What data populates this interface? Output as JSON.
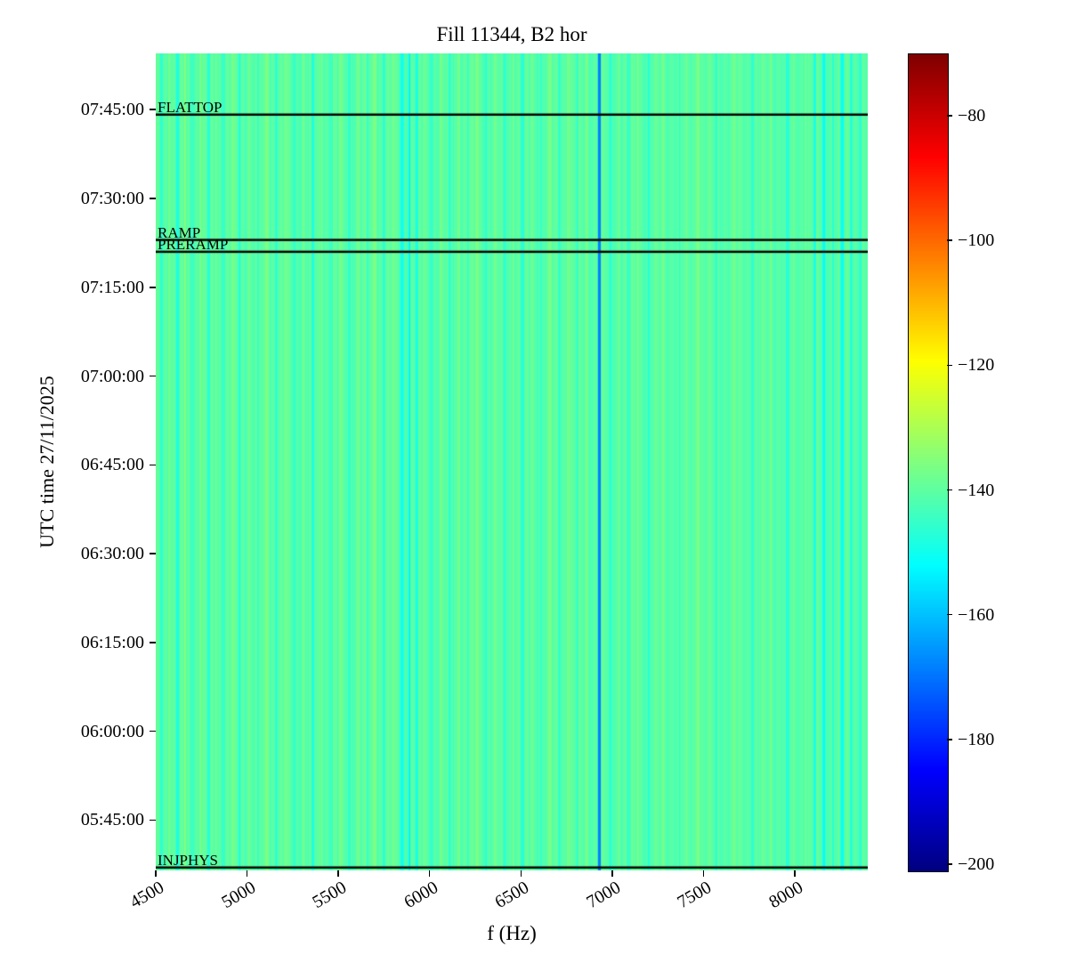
{
  "chart_data": {
    "type": "heatmap",
    "title": "Fill 11344, B2 hor",
    "xlabel": "f (Hz)",
    "ylabel": "UTC time 27/11/2025",
    "x_range": [
      4500,
      8400
    ],
    "x_ticks": [
      4500,
      5000,
      5500,
      6000,
      6500,
      7000,
      7500,
      8000
    ],
    "y_top": "07:54:30",
    "y_bottom": "05:36:30",
    "y_ticks": [
      "07:45:00",
      "07:30:00",
      "07:15:00",
      "07:00:00",
      "06:45:00",
      "06:30:00",
      "06:15:00",
      "06:00:00",
      "05:45:00"
    ],
    "grid": false,
    "colorbar": {
      "colormap": "jet",
      "vmin": -201,
      "vmax": -70,
      "tick_values": [
        -80,
        -100,
        -120,
        -140,
        -160,
        -180,
        -200
      ],
      "tick_labels": [
        "−80",
        "−100",
        "−120",
        "−140",
        "−160",
        "−180",
        "−200"
      ]
    },
    "base_db": -140.5,
    "events": [
      {
        "label": "FLATTOP",
        "time": "07:44:10"
      },
      {
        "label": "RAMP",
        "time": "07:23:00"
      },
      {
        "label": "PRERAMP",
        "time": "07:21:00"
      },
      {
        "label": "INJPHYS",
        "time": "05:37:00"
      }
    ],
    "vertical_lines": [
      {
        "f": 6930,
        "width_hz": 16,
        "db": -168
      }
    ],
    "stripes": [
      [
        4530,
        15,
        -146
      ],
      [
        4575,
        10,
        -136
      ],
      [
        4620,
        18,
        -148
      ],
      [
        4660,
        8,
        -134
      ],
      [
        4700,
        25,
        -144
      ],
      [
        4745,
        10,
        -135
      ],
      [
        4790,
        15,
        -147
      ],
      [
        4830,
        8,
        -137
      ],
      [
        4870,
        20,
        -145
      ],
      [
        4920,
        12,
        -136
      ],
      [
        4960,
        10,
        -148
      ],
      [
        5010,
        15,
        -138
      ],
      [
        5060,
        8,
        -146
      ],
      [
        5110,
        20,
        -136
      ],
      [
        5160,
        10,
        -147
      ],
      [
        5210,
        12,
        -137
      ],
      [
        5260,
        18,
        -145
      ],
      [
        5310,
        8,
        -136
      ],
      [
        5360,
        15,
        -148
      ],
      [
        5410,
        10,
        -137
      ],
      [
        5460,
        20,
        -144
      ],
      [
        5510,
        10,
        -136
      ],
      [
        5560,
        12,
        -147
      ],
      [
        5610,
        15,
        -137
      ],
      [
        5660,
        8,
        -146
      ],
      [
        5700,
        20,
        -136
      ],
      [
        5750,
        10,
        -148
      ],
      [
        5800,
        12,
        -137
      ],
      [
        5850,
        18,
        -150
      ],
      [
        5890,
        10,
        -153
      ],
      [
        5930,
        15,
        -149
      ],
      [
        5970,
        8,
        -137
      ],
      [
        6010,
        20,
        -145
      ],
      [
        6060,
        10,
        -136
      ],
      [
        6110,
        12,
        -147
      ],
      [
        6160,
        15,
        -137
      ],
      [
        6210,
        8,
        -145
      ],
      [
        6260,
        18,
        -136
      ],
      [
        6310,
        10,
        -147
      ],
      [
        6360,
        12,
        -137
      ],
      [
        6410,
        15,
        -146
      ],
      [
        6460,
        8,
        -136
      ],
      [
        6510,
        20,
        -147
      ],
      [
        6560,
        10,
        -137
      ],
      [
        6610,
        12,
        -145
      ],
      [
        6660,
        15,
        -136
      ],
      [
        6710,
        8,
        -147
      ],
      [
        6760,
        18,
        -137
      ],
      [
        6810,
        10,
        -146
      ],
      [
        6860,
        12,
        -136
      ],
      [
        6990,
        15,
        -147
      ],
      [
        7040,
        8,
        -137
      ],
      [
        7090,
        20,
        -145
      ],
      [
        7140,
        10,
        -136
      ],
      [
        7200,
        12,
        -147
      ],
      [
        7280,
        15,
        -137
      ],
      [
        7370,
        8,
        -146
      ],
      [
        7470,
        18,
        -136
      ],
      [
        7570,
        10,
        -147
      ],
      [
        7670,
        12,
        -137
      ],
      [
        7770,
        15,
        -146
      ],
      [
        7870,
        8,
        -136
      ],
      [
        7960,
        20,
        -147
      ],
      [
        8060,
        10,
        -137
      ],
      [
        8110,
        12,
        -150
      ],
      [
        8160,
        15,
        -152
      ],
      [
        8210,
        8,
        -148
      ],
      [
        8260,
        18,
        -151
      ],
      [
        8310,
        10,
        -149
      ],
      [
        8360,
        12,
        -147
      ]
    ]
  }
}
